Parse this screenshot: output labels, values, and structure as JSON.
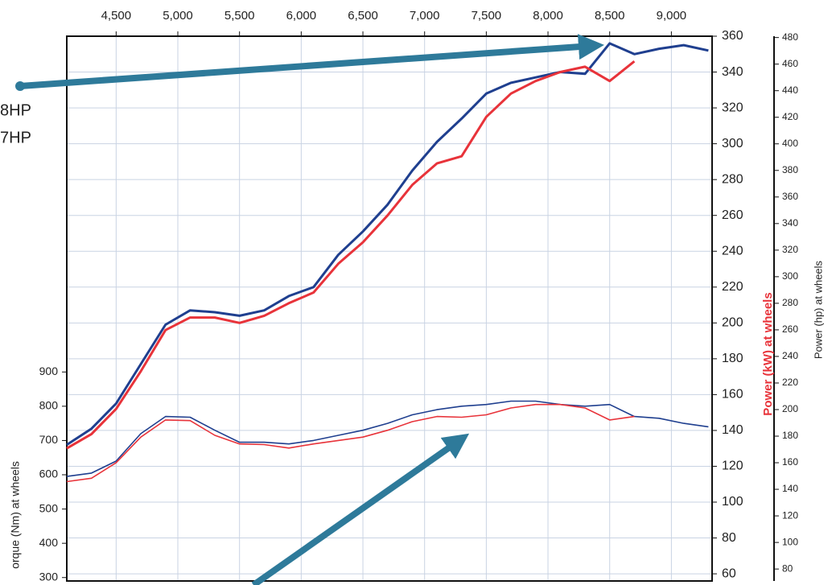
{
  "chart_data": {
    "type": "line",
    "annotations": [
      "8HP",
      "7HP"
    ],
    "y_label": "orque (Nm) at wheels",
    "y2_label": "Power (kW) at wheels",
    "y3_label": "Power (hp) at wheels",
    "y2_label_color": "#e8333a",
    "grid": true,
    "x": [
      4100,
      4300,
      4500,
      4700,
      4900,
      5100,
      5300,
      5500,
      5700,
      5900,
      6100,
      6300,
      6500,
      6700,
      6900,
      7100,
      7300,
      7500,
      7700,
      7900,
      8100,
      8300,
      8500,
      8700,
      8900,
      9100,
      9300
    ],
    "xlim": [
      4100,
      9330
    ],
    "xticks": [
      {
        "value": 4500,
        "label": "4,500"
      },
      {
        "value": 5000,
        "label": "5,000"
      },
      {
        "value": 5500,
        "label": "5,500"
      },
      {
        "value": 6000,
        "label": "6,000"
      },
      {
        "value": 6500,
        "label": "6,500"
      },
      {
        "value": 7000,
        "label": "7,000"
      },
      {
        "value": 7500,
        "label": "7,500"
      },
      {
        "value": 8000,
        "label": "8,000"
      },
      {
        "value": 8500,
        "label": "8,500"
      },
      {
        "value": 9000,
        "label": "9,000"
      }
    ],
    "ylim": [
      290,
      1880
    ],
    "yticks": [
      300,
      400,
      500,
      600,
      700,
      800,
      900
    ],
    "y2lim": [
      56,
      360
    ],
    "y2ticks": [
      60,
      80,
      100,
      120,
      140,
      160,
      180,
      200,
      220,
      240,
      260,
      280,
      300,
      320,
      340,
      360
    ],
    "y3lim": [
      71,
      481
    ],
    "y3ticks": [
      80,
      100,
      120,
      140,
      160,
      180,
      200,
      220,
      240,
      260,
      280,
      300,
      320,
      340,
      360,
      380,
      400,
      420,
      440,
      460,
      480
    ],
    "series": [
      {
        "color": "#1f3f8f",
        "axis": "y2",
        "values": [
          132,
          141,
          155,
          177,
          199,
          207,
          206,
          204,
          207,
          215,
          220,
          238,
          251,
          266,
          285,
          301,
          314,
          328,
          334,
          337,
          340,
          339,
          356,
          350,
          353,
          355,
          352
        ]
      },
      {
        "color": "#e8333a",
        "axis": "y2",
        "values": [
          130,
          138,
          152,
          173,
          196,
          203,
          203,
          200,
          204,
          211,
          217,
          233,
          245,
          260,
          277,
          289,
          293,
          315,
          328,
          335,
          340,
          343,
          335,
          346,
          null,
          null,
          null
        ]
      },
      {
        "color": "#1f3f8f",
        "axis": "y",
        "values": [
          595,
          605,
          640,
          720,
          770,
          768,
          730,
          695,
          695,
          690,
          700,
          715,
          730,
          750,
          775,
          790,
          800,
          805,
          815,
          815,
          805,
          800,
          805,
          770,
          765,
          750,
          740
        ]
      },
      {
        "color": "#e8333a",
        "axis": "y",
        "values": [
          580,
          590,
          635,
          710,
          760,
          758,
          715,
          690,
          688,
          678,
          690,
          700,
          710,
          730,
          755,
          770,
          768,
          775,
          795,
          805,
          805,
          795,
          760,
          770,
          null,
          null,
          null
        ]
      }
    ]
  }
}
